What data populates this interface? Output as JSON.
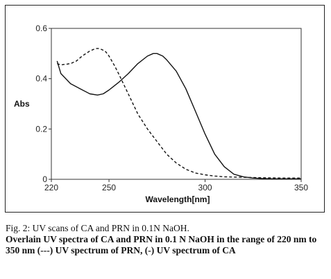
{
  "caption": {
    "title": "Fig. 2: UV scans of CA and PRN in 0.1N NaOH.",
    "body": "Overlain UV spectra of CA and PRN in 0.1 N NaOH in the range of 220 nm to 350 nm (---) UV spectrum of PRN, (-) UV spectrum of CA"
  },
  "chart_data": {
    "type": "line",
    "xlabel": "Wavelength[nm]",
    "ylabel": "Abs",
    "xlim": [
      220,
      350
    ],
    "ylim": [
      0,
      0.6
    ],
    "xticks": [
      220,
      250,
      300,
      350
    ],
    "xtick_labels": [
      "220",
      "250",
      "300",
      "350"
    ],
    "yticks": [
      0,
      0.2,
      0.4,
      0.6
    ],
    "ytick_labels": [
      "0",
      "0.2",
      "0.4",
      "0.6"
    ],
    "grid": false,
    "series": [
      {
        "style": "solid",
        "color": "#111111",
        "x": [
          223,
          225,
          230,
          235,
          240,
          244,
          247,
          250,
          255,
          260,
          265,
          270,
          273,
          275,
          278,
          280,
          285,
          290,
          295,
          300,
          305,
          310,
          315,
          320,
          325,
          330,
          335,
          340,
          345,
          350
        ],
        "y": [
          0.47,
          0.42,
          0.38,
          0.36,
          0.34,
          0.335,
          0.34,
          0.355,
          0.385,
          0.42,
          0.46,
          0.49,
          0.5,
          0.5,
          0.49,
          0.475,
          0.43,
          0.36,
          0.27,
          0.18,
          0.1,
          0.05,
          0.02,
          0.01,
          0.005,
          0.003,
          0.002,
          0.002,
          0.002,
          0.002
        ]
      },
      {
        "style": "dashed",
        "color": "#111111",
        "x": [
          223,
          225,
          230,
          233,
          236,
          240,
          243,
          245,
          248,
          250,
          253,
          255,
          260,
          265,
          270,
          275,
          280,
          285,
          290,
          295,
          300,
          305,
          310,
          320,
          330,
          340,
          350
        ],
        "y": [
          0.46,
          0.455,
          0.46,
          0.47,
          0.49,
          0.51,
          0.52,
          0.52,
          0.51,
          0.49,
          0.45,
          0.42,
          0.34,
          0.26,
          0.2,
          0.15,
          0.1,
          0.065,
          0.04,
          0.025,
          0.018,
          0.013,
          0.01,
          0.008,
          0.006,
          0.005,
          0.005
        ]
      }
    ]
  }
}
